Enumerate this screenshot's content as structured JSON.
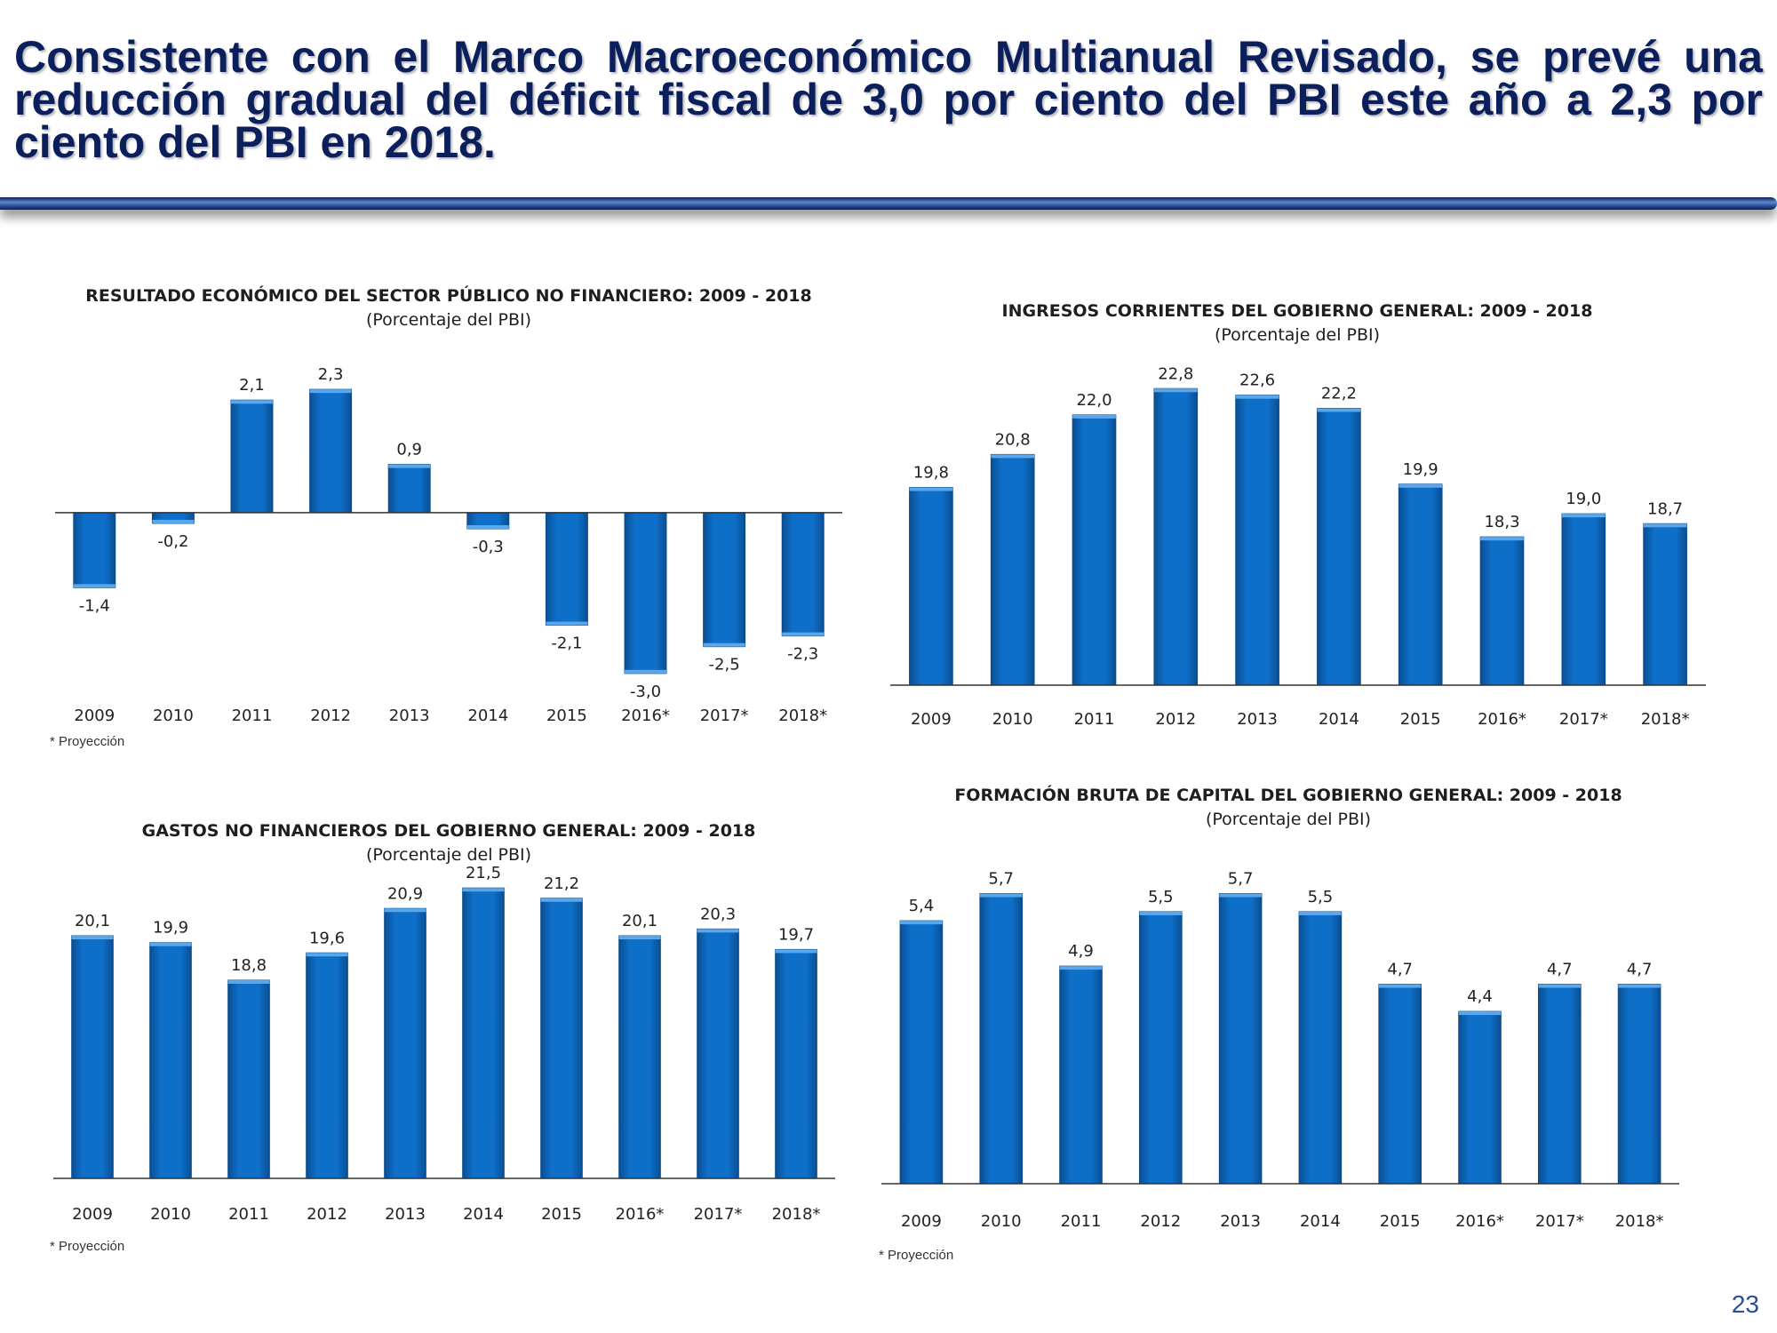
{
  "headline": "Consistente con el Marco Macroeconómico Multianual Revisado, se prevé una reducción gradual del déficit fiscal de 3,0 por ciento del PBI este año a 2,3 por ciento del PBI en 2018.",
  "page_number": "23",
  "colors": {
    "bar": "#0e6fc9",
    "bar_dark": "#0a4f92",
    "axis": "#333333",
    "headline": "#0b1f5c"
  },
  "chart_data": [
    {
      "type": "bar",
      "title": "RESULTADO ECONÓMICO DEL SECTOR PÚBLICO NO FINANCIERO: 2009 - 2018",
      "subtitle": "(Porcentaje del PBI)",
      "categories": [
        "2009",
        "2010",
        "2011",
        "2012",
        "2013",
        "2014",
        "2015",
        "2016*",
        "2017*",
        "2018*"
      ],
      "values": [
        -1.4,
        -0.2,
        2.1,
        2.3,
        0.9,
        -0.3,
        -2.1,
        -3.0,
        -2.5,
        -2.3
      ],
      "value_labels": [
        "-1,4",
        "-0,2",
        "2,1",
        "2,3",
        "0,9",
        "-0,3",
        "-2,1",
        "-3,0",
        "-2,5",
        "-2,3"
      ],
      "ylim": [
        -3.5,
        2.8
      ],
      "footnote": "* Proyección"
    },
    {
      "type": "bar",
      "title": "INGRESOS CORRIENTES DEL GOBIERNO GENERAL: 2009 - 2018",
      "subtitle": "(Porcentaje del PBI)",
      "categories": [
        "2009",
        "2010",
        "2011",
        "2012",
        "2013",
        "2014",
        "2015",
        "2016*",
        "2017*",
        "2018*"
      ],
      "values": [
        19.8,
        20.8,
        22.0,
        22.8,
        22.6,
        22.2,
        19.9,
        18.3,
        19.0,
        18.7
      ],
      "value_labels": [
        "19,8",
        "20,8",
        "22,0",
        "22,8",
        "22,6",
        "22,2",
        "19,9",
        "18,3",
        "19,0",
        "18,7"
      ],
      "ylim": [
        13.8,
        23.4
      ],
      "footnote": ""
    },
    {
      "type": "bar",
      "title": "GASTOS NO FINANCIEROS DEL GOBIERNO GENERAL: 2009 - 2018",
      "subtitle": "(Porcentaje del PBI)",
      "categories": [
        "2009",
        "2010",
        "2011",
        "2012",
        "2013",
        "2014",
        "2015",
        "2016*",
        "2017*",
        "2018*"
      ],
      "values": [
        20.1,
        19.9,
        18.8,
        19.6,
        20.9,
        21.5,
        21.2,
        20.1,
        20.3,
        19.7
      ],
      "value_labels": [
        "20,1",
        "19,9",
        "18,8",
        "19,6",
        "20,9",
        "21,5",
        "21,2",
        "20,1",
        "20,3",
        "19,7"
      ],
      "ylim": [
        13.0,
        22.0
      ],
      "footnote": "* Proyección"
    },
    {
      "type": "bar",
      "title": "FORMACIÓN BRUTA DE CAPITAL DEL GOBIERNO GENERAL: 2009 - 2018",
      "subtitle": "(Porcentaje del PBI)",
      "categories": [
        "2009",
        "2010",
        "2011",
        "2012",
        "2013",
        "2014",
        "2015",
        "2016*",
        "2017*",
        "2018*"
      ],
      "values": [
        5.4,
        5.7,
        4.9,
        5.5,
        5.7,
        5.5,
        4.7,
        4.4,
        4.7,
        4.7
      ],
      "value_labels": [
        "5,4",
        "5,7",
        "4,9",
        "5,5",
        "5,7",
        "5,5",
        "4,7",
        "4,4",
        "4,7",
        "4,7"
      ],
      "ylim": [
        2.5,
        5.95
      ],
      "footnote": "* Proyección"
    }
  ]
}
